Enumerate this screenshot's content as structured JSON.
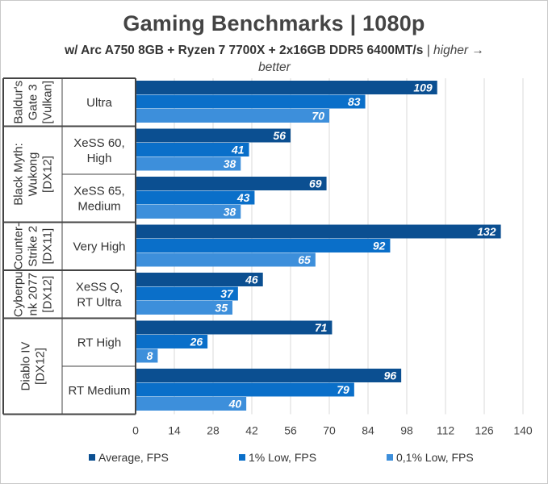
{
  "chart_data": {
    "type": "bar",
    "orientation": "horizontal",
    "title": "Gaming Benchmarks | 1080p",
    "subtitle": "w/ Arc A750 8GB + Ryzen 7 7700X + 2x16GB DDR5 6400MT/s",
    "subtitle_note": "| higher → better",
    "xlim": [
      0,
      140
    ],
    "xticks": [
      0,
      14,
      28,
      42,
      56,
      70,
      84,
      98,
      112,
      126,
      140
    ],
    "grid": "vertical",
    "legend_position": "bottom",
    "groups": [
      {
        "label": [
          "Baldur's",
          "Gate 3",
          "[Vulkan]"
        ],
        "categories": [
          "Ultra"
        ]
      },
      {
        "label": [
          "Black Myth:",
          "Wukong",
          "[DX12]"
        ],
        "categories": [
          "XeSS 60, High",
          "XeSS 65, Medium"
        ]
      },
      {
        "label": [
          "Counter-",
          "Strike 2",
          "[DX11]"
        ],
        "categories": [
          "Very High"
        ]
      },
      {
        "label": [
          "Cyberpu",
          "nk 2077",
          "[DX12]"
        ],
        "categories": [
          "XeSS Q, RT Ultra"
        ]
      },
      {
        "label": [
          "Diablo IV",
          "[DX12]"
        ],
        "categories": [
          "RT High",
          "RT Medium"
        ]
      }
    ],
    "category_lines": [
      [
        "Ultra"
      ],
      [
        "XeSS 60,",
        "High"
      ],
      [
        "XeSS 65,",
        "Medium"
      ],
      [
        "Very High"
      ],
      [
        "XeSS Q,",
        "RT Ultra"
      ],
      [
        "RT High"
      ],
      [
        "RT Medium"
      ]
    ],
    "series": [
      {
        "name": "Average, FPS",
        "color": "#0b4f91",
        "values": [
          109,
          56,
          69,
          132,
          46,
          71,
          96
        ]
      },
      {
        "name": "1% Low, FPS",
        "color": "#0a6fc9",
        "values": [
          83,
          41,
          43,
          92,
          37,
          26,
          79
        ]
      },
      {
        "name": "0,1% Low, FPS",
        "color": "#3d8fdb",
        "values": [
          70,
          38,
          38,
          65,
          35,
          8,
          40
        ]
      }
    ]
  }
}
